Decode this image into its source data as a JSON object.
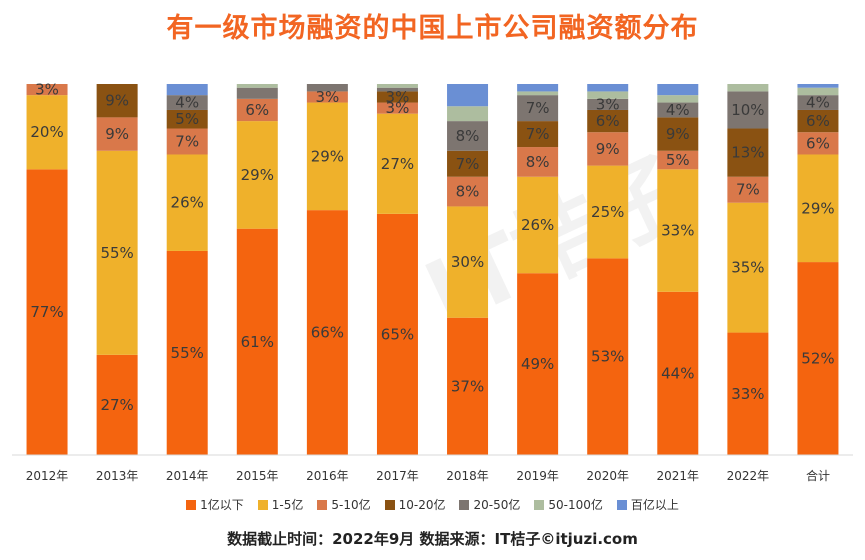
{
  "title": "有一级市场融资的中国上市公司融资额分布",
  "footer": "数据截止时间：2022年9月 数据来源：IT桔子©itjuzi.com",
  "watermark": "IT桔子",
  "chart_data": {
    "type": "bar",
    "stacked": true,
    "percent": true,
    "ylim": [
      0,
      100
    ],
    "legend_position": "bottom",
    "categories": [
      "2012年",
      "2013年",
      "2014年",
      "2015年",
      "2016年",
      "2017年",
      "2018年",
      "2019年",
      "2020年",
      "2021年",
      "2022年",
      "合计"
    ],
    "series": [
      {
        "name": "1亿以下",
        "color": "#f4640f",
        "values": [
          77,
          27,
          55,
          61,
          66,
          65,
          37,
          49,
          53,
          44,
          33,
          52
        ]
      },
      {
        "name": "1-5亿",
        "color": "#efb12b",
        "values": [
          20,
          55,
          26,
          29,
          29,
          27,
          30,
          26,
          25,
          33,
          35,
          29
        ]
      },
      {
        "name": "5-10亿",
        "color": "#d9784a",
        "values": [
          3,
          9,
          7,
          6,
          3,
          3,
          8,
          8,
          9,
          5,
          7,
          6
        ]
      },
      {
        "name": "10-20亿",
        "color": "#8a5212",
        "values": [
          0,
          9,
          5,
          0,
          0,
          3,
          7,
          7,
          6,
          9,
          13,
          6
        ]
      },
      {
        "name": "20-50亿",
        "color": "#7d7570",
        "values": [
          0,
          0,
          4,
          3,
          2,
          1,
          8,
          7,
          3,
          4,
          10,
          4
        ]
      },
      {
        "name": "50-100亿",
        "color": "#adbd9f",
        "values": [
          0,
          0,
          0,
          1,
          0,
          1,
          4,
          1,
          2,
          2,
          2,
          2
        ]
      },
      {
        "name": "百亿以上",
        "color": "#6a8fd4",
        "values": [
          0,
          0,
          3,
          0,
          0,
          0,
          6,
          2,
          2,
          3,
          0,
          1
        ]
      }
    ],
    "data_labels": [
      [
        "77%",
        "20%",
        "3%",
        "",
        "",
        "",
        ""
      ],
      [
        "27%",
        "55%",
        "9%",
        "9%",
        "",
        "",
        ""
      ],
      [
        "55%",
        "26%",
        "7%",
        "5%",
        "4%",
        "",
        ""
      ],
      [
        "61%",
        "29%",
        "6%",
        "",
        "",
        "",
        ""
      ],
      [
        "66%",
        "29%",
        "3%",
        "",
        "",
        "",
        ""
      ],
      [
        "65%",
        "27%",
        "3%",
        "3%",
        "",
        "",
        ""
      ],
      [
        "37%",
        "30%",
        "8%",
        "7%",
        "8%",
        "",
        ""
      ],
      [
        "49%",
        "26%",
        "8%",
        "7%",
        "7%",
        "",
        ""
      ],
      [
        "53%",
        "25%",
        "9%",
        "6%",
        "3%",
        "",
        ""
      ],
      [
        "44%",
        "33%",
        "5%",
        "9%",
        "4%",
        "",
        ""
      ],
      [
        "33%",
        "35%",
        "7%",
        "13%",
        "10%",
        "",
        ""
      ],
      [
        "52%",
        "29%",
        "6%",
        "6%",
        "4%",
        "",
        ""
      ]
    ]
  }
}
